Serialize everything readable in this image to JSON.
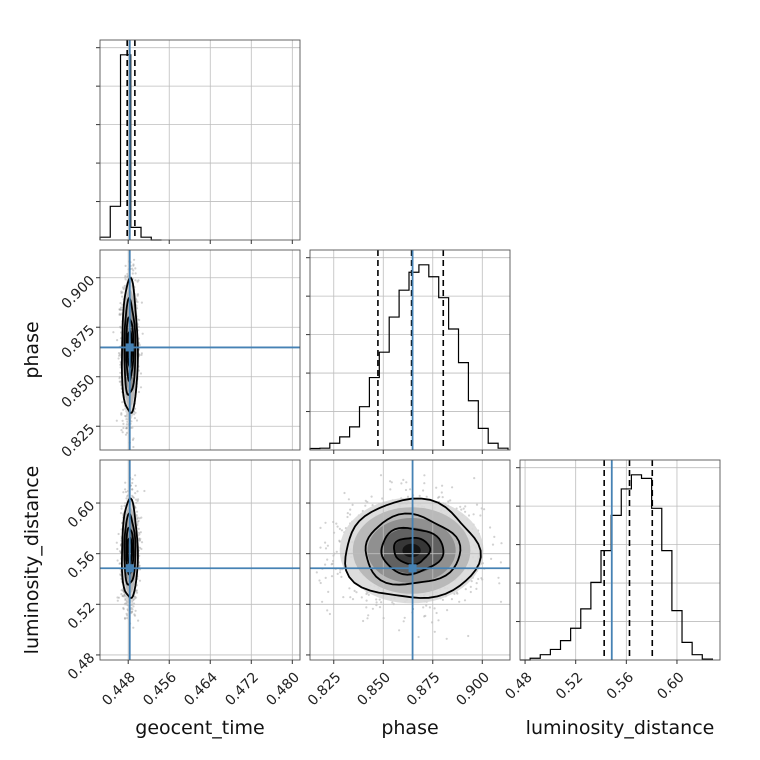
{
  "chart_data": {
    "type": "corner",
    "parameters": [
      "geocent_time",
      "phase",
      "luminosity_distance"
    ],
    "ranges": {
      "geocent_time": [
        0.4425,
        0.4815
      ],
      "phase": [
        0.813,
        0.914
      ],
      "luminosity_distance": [
        0.476,
        0.634
      ]
    },
    "ticks": {
      "geocent_time": [
        "0.448",
        "0.456",
        "0.464",
        "0.472",
        "0.480"
      ],
      "phase": [
        "0.825",
        "0.850",
        "0.875",
        "0.900"
      ],
      "luminosity_distance": [
        "0.48",
        "0.52",
        "0.56",
        "0.60"
      ]
    },
    "truths": {
      "geocent_time": 0.4483,
      "phase": 0.8648,
      "luminosity_distance": 0.5485
    },
    "quantiles": {
      "geocent_time": [
        0.4478,
        0.4483,
        0.4493
      ],
      "phase": [
        0.8473,
        0.8643,
        0.8803
      ],
      "luminosity_distance": [
        0.5425,
        0.5625,
        0.5805
      ]
    },
    "histograms": {
      "geocent_time": {
        "edges": [
          0.4425,
          0.4445,
          0.4465,
          0.4485,
          0.4505,
          0.4525,
          0.4545
        ],
        "counts": [
          1,
          12,
          66,
          4.5,
          1,
          0
        ]
      },
      "phase": {
        "edges": [
          0.813,
          0.818,
          0.823,
          0.828,
          0.833,
          0.838,
          0.843,
          0.848,
          0.853,
          0.858,
          0.863,
          0.868,
          0.873,
          0.878,
          0.883,
          0.888,
          0.893,
          0.898,
          0.903,
          0.908,
          0.913
        ],
        "counts": [
          1,
          1.2,
          4.5,
          8.8,
          15.5,
          29,
          48.5,
          65.5,
          89,
          107,
          119,
          124,
          116,
          102,
          81,
          58.5,
          33,
          14.5,
          4.5,
          1.2
        ]
      },
      "luminosity_distance": {
        "edges": [
          0.476,
          0.484,
          0.492,
          0.5,
          0.508,
          0.516,
          0.524,
          0.532,
          0.54,
          0.548,
          0.556,
          0.564,
          0.572,
          0.58,
          0.588,
          0.596,
          0.604,
          0.612,
          0.62,
          0.628
        ],
        "counts": [
          0,
          1,
          3,
          6,
          11,
          18,
          29,
          44,
          62,
          82,
          97,
          105,
          103,
          86,
          62,
          28,
          10,
          3,
          0.5
        ]
      }
    },
    "contour_levels": [
      0.118,
      0.393,
      0.675,
      0.864
    ]
  }
}
